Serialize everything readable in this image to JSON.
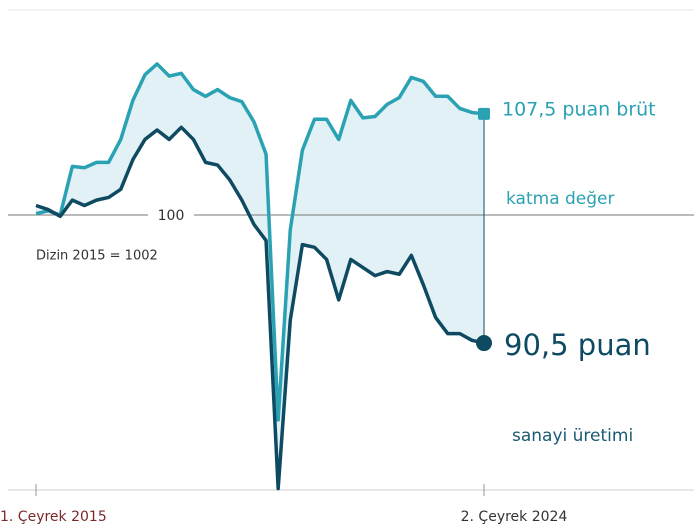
{
  "chart_data": {
    "type": "line",
    "categories": [
      "1. Çeyrek 2015",
      null,
      null,
      null,
      null,
      null,
      null,
      null,
      null,
      null,
      null,
      null,
      null,
      null,
      null,
      null,
      null,
      null,
      null,
      null,
      null,
      null,
      null,
      null,
      null,
      null,
      null,
      null,
      null,
      null,
      null,
      null,
      null,
      null,
      null,
      null,
      null,
      "2. Çeyrek 2024"
    ],
    "series": [
      {
        "label": [
          "107,5 puan brüt",
          "katma değer"
        ],
        "color": "#2aa2b4",
        "values": [
          100.1,
          100.3,
          100,
          103.6,
          103.5,
          103.9,
          103.9,
          105.6,
          108.5,
          110.4,
          111.2,
          110.3,
          110.5,
          109.3,
          108.8,
          109.3,
          108.7,
          108.4,
          106.9,
          104.5,
          84.8,
          98.9,
          104.8,
          107.1,
          107.1,
          105.6,
          108.5,
          107.2,
          107.3,
          108.2,
          108.7,
          110.2,
          109.9,
          108.8,
          108.8,
          107.9,
          107.6,
          107.5
        ]
      },
      {
        "label": [
          "90,5 puan",
          "sanayi üretimi"
        ],
        "color": "#0e4a62",
        "values": [
          100.7,
          100.4,
          99.9,
          101.1,
          100.7,
          101.1,
          101.3,
          101.9,
          104.1,
          105.6,
          106.3,
          105.6,
          106.5,
          105.6,
          103.9,
          103.7,
          102.6,
          101.1,
          99.3,
          98.1,
          79.7,
          92.2,
          97.8,
          97.6,
          96.7,
          93.7,
          96.7,
          96.1,
          95.5,
          95.8,
          95.6,
          97.0,
          94.8,
          92.4,
          91.2,
          91.2,
          90.7,
          90.5
        ]
      }
    ],
    "annotation": "Dizin 2015 = 1002",
    "ylim": [
      79.6,
      115.2
    ],
    "yticks": [
      100
    ],
    "fill_between": "#e2f1f6"
  }
}
